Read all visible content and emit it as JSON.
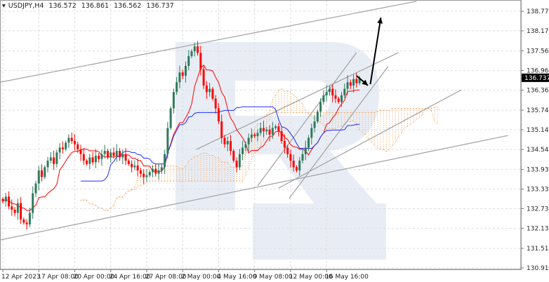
{
  "header": {
    "symbol": "USDJPY,H4",
    "open": "136.572",
    "high": "136.861",
    "low": "136.562",
    "close": "136.737"
  },
  "colors": {
    "bull": "#2f7a5c",
    "bear": "#ff0000",
    "tenkan": "#ff0000",
    "kijun": "#1f2eff",
    "cloud": "#f4a460",
    "trendline": "#a0a0a0",
    "arrow": "#000000",
    "watermark": "#e8edf5",
    "price_label_bg": "#000000"
  },
  "chart_data": {
    "type": "candlestick",
    "title": "",
    "timeframe": "H4",
    "indicators": [
      "Ichimoku Kinko Hyo"
    ],
    "current_price": "136.737",
    "ylim": [
      130.915,
      138.775
    ],
    "yticks": [
      "138.775",
      "138.175",
      "137.560",
      "136.960",
      "136.360",
      "135.745",
      "135.145",
      "134.545",
      "133.930",
      "133.330",
      "132.730",
      "132.130",
      "131.515",
      "130.915"
    ],
    "xticks": [
      {
        "bar": 0,
        "label": "12 Apr 2023"
      },
      {
        "bar": 12,
        "label": "17 Apr 08:00"
      },
      {
        "bar": 24,
        "label": "20 Apr 00:00"
      },
      {
        "bar": 36,
        "label": "24 Apr 16:00"
      },
      {
        "bar": 48,
        "label": "27 Apr 08:00"
      },
      {
        "bar": 60,
        "label": "2 May 00:00"
      },
      {
        "bar": 72,
        "label": "4 May 16:00"
      },
      {
        "bar": 84,
        "label": "9 May 08:00"
      },
      {
        "bar": 96,
        "label": "12 May 00:00"
      },
      {
        "bar": 108,
        "label": "16 May 16:00"
      }
    ],
    "closes": [
      132.95,
      133.1,
      132.8,
      132.7,
      132.6,
      132.9,
      132.4,
      132.3,
      132.25,
      132.6,
      133.2,
      133.5,
      133.9,
      133.7,
      134.0,
      134.2,
      134.3,
      134.1,
      134.45,
      134.6,
      134.55,
      134.75,
      134.9,
      134.8,
      134.7,
      134.55,
      134.4,
      134.2,
      134.1,
      134.3,
      134.15,
      134.35,
      134.25,
      134.4,
      134.5,
      134.3,
      134.45,
      134.35,
      134.5,
      134.3,
      134.4,
      134.2,
      134.1,
      134.0,
      134.05,
      133.9,
      133.8,
      133.7,
      133.75,
      133.85,
      133.95,
      133.8,
      133.9,
      134.0,
      134.4,
      135.2,
      135.8,
      136.3,
      136.6,
      136.9,
      136.8,
      137.1,
      137.4,
      137.55,
      137.7,
      137.5,
      137.0,
      136.5,
      136.3,
      136.4,
      136.1,
      135.8,
      135.4,
      134.9,
      134.7,
      134.8,
      134.5,
      134.2,
      134.0,
      134.4,
      134.6,
      134.7,
      134.9,
      135.0,
      134.95,
      135.05,
      135.2,
      135.1,
      135.15,
      135.0,
      135.2,
      135.25,
      135.1,
      134.8,
      134.6,
      134.4,
      134.2,
      134.0,
      133.9,
      134.2,
      134.4,
      134.6,
      134.9,
      135.2,
      135.4,
      135.7,
      136.0,
      136.2,
      136.3,
      136.4,
      136.2,
      136.1,
      136.0,
      136.2,
      136.4,
      136.6,
      136.5,
      136.7,
      136.572,
      136.737
    ],
    "trendlines": [
      {
        "from": [
          -1,
          136.6
        ],
        "to": [
          138,
          139.08
        ]
      },
      {
        "from": [
          -1,
          131.77
        ],
        "to": [
          168.5,
          134.97
        ]
      },
      {
        "from": [
          64.5,
          134.54
        ],
        "to": [
          132,
          137.51
        ]
      },
      {
        "from": [
          92,
          133.36
        ],
        "to": [
          153,
          136.37
        ]
      },
      {
        "from": [
          85,
          133.43
        ],
        "to": [
          118,
          137.51
        ]
      },
      {
        "from": [
          95.5,
          133.04
        ],
        "to": [
          128.5,
          137.08
        ]
      }
    ],
    "arrows": [
      {
        "from": [
          118,
          136.8
        ],
        "to": [
          121.8,
          136.5
        ]
      },
      {
        "from": [
          122.6,
          136.54
        ],
        "to": [
          126.1,
          138.58
        ]
      }
    ]
  }
}
